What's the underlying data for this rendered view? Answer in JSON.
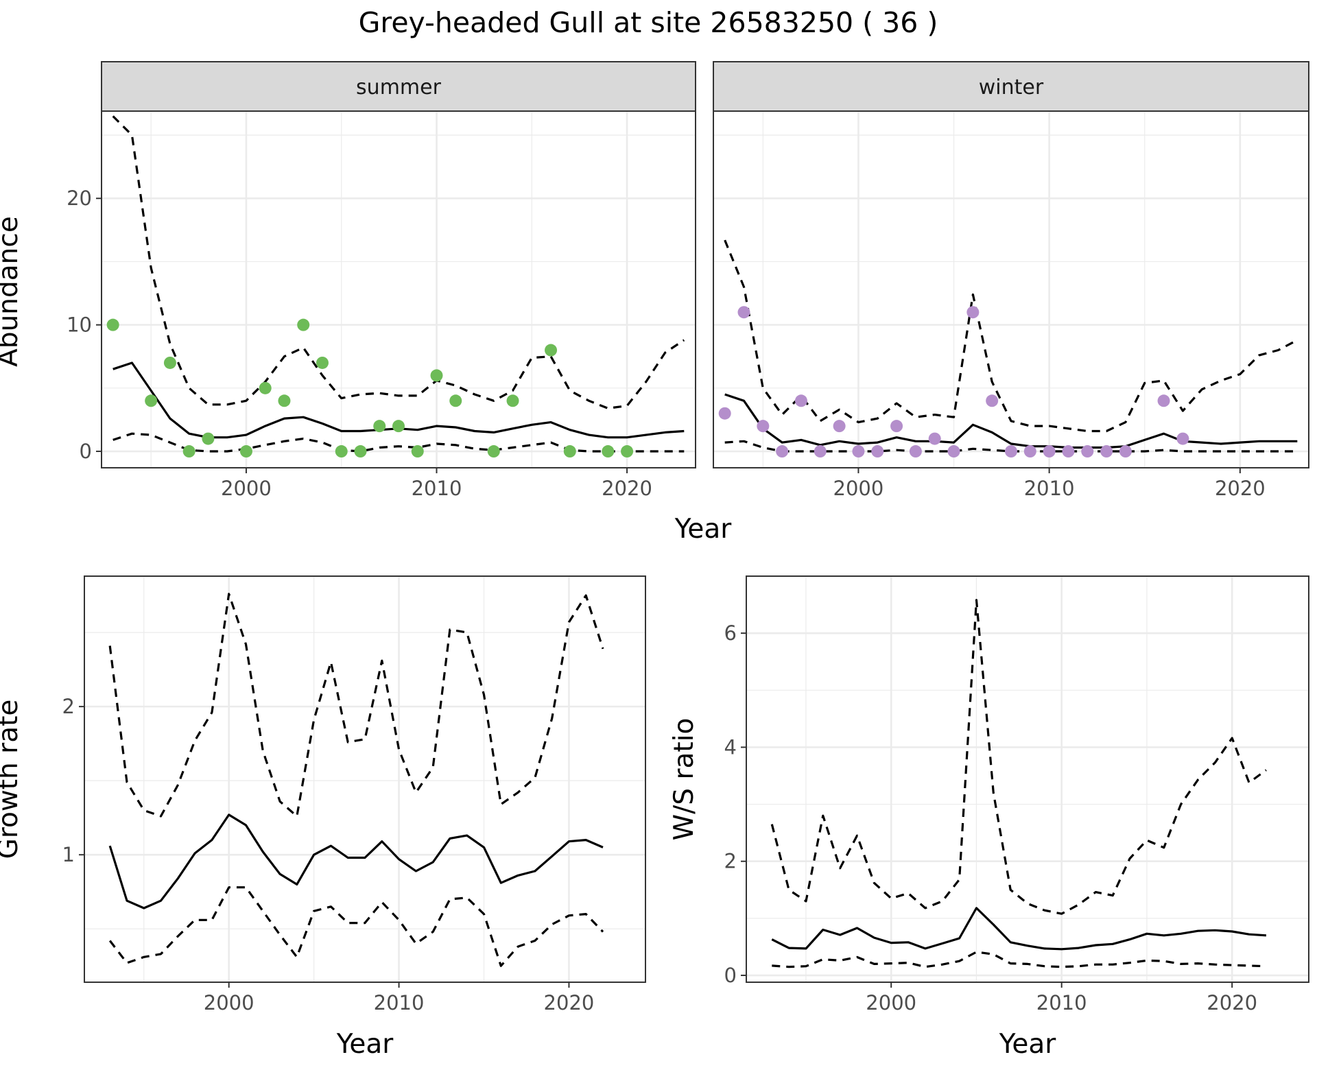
{
  "title": "Grey-headed Gull at site 26583250 ( 36 )",
  "colors": {
    "summer_points": "#6dbb57",
    "winter_points": "#b48ecb",
    "line": "#000000",
    "grid": "#ebebeb",
    "strip_fill": "#d9d9d9",
    "strip_border": "#333333",
    "panel_border": "#333333"
  },
  "chart_data": [
    {
      "type": "line",
      "facet": "summer",
      "strip_label": "summer",
      "xlabel": "Year",
      "ylabel": "Abundance",
      "xlim": [
        1992.4,
        2023.6
      ],
      "ylim": [
        -1.3,
        26.9
      ],
      "xticks": [
        2000,
        2010,
        2020
      ],
      "yticks": [
        0,
        10,
        20
      ],
      "grid": true,
      "series": [
        {
          "role": "estimate",
          "style": "solid",
          "x": [
            1993,
            1994,
            1995,
            1996,
            1997,
            1998,
            1999,
            2000,
            2001,
            2002,
            2003,
            2004,
            2005,
            2006,
            2007,
            2008,
            2009,
            2010,
            2011,
            2012,
            2013,
            2014,
            2015,
            2016,
            2017,
            2018,
            2019,
            2020,
            2021,
            2022,
            2023
          ],
          "y": [
            6.5,
            7.0,
            4.8,
            2.6,
            1.4,
            1.1,
            1.1,
            1.3,
            2.0,
            2.6,
            2.7,
            2.2,
            1.6,
            1.6,
            1.7,
            1.8,
            1.7,
            2.0,
            1.9,
            1.6,
            1.5,
            1.8,
            2.1,
            2.3,
            1.7,
            1.3,
            1.1,
            1.1,
            1.3,
            1.5,
            1.6
          ]
        },
        {
          "role": "upper",
          "style": "dashed",
          "x": [
            1993,
            1994,
            1995,
            1996,
            1997,
            1998,
            1999,
            2000,
            2001,
            2002,
            2003,
            2004,
            2005,
            2006,
            2007,
            2008,
            2009,
            2010,
            2011,
            2012,
            2013,
            2014,
            2015,
            2016,
            2017,
            2018,
            2019,
            2020,
            2021,
            2022,
            2023
          ],
          "y": [
            26.5,
            25.0,
            14.5,
            8.5,
            5.0,
            3.7,
            3.7,
            4.0,
            5.5,
            7.5,
            8.2,
            6.0,
            4.2,
            4.5,
            4.6,
            4.4,
            4.4,
            5.6,
            5.2,
            4.5,
            4.0,
            4.8,
            7.4,
            7.5,
            4.8,
            4.0,
            3.4,
            3.6,
            5.5,
            7.8,
            8.8
          ]
        },
        {
          "role": "lower",
          "style": "dashed",
          "x": [
            1993,
            1994,
            1995,
            1996,
            1997,
            1998,
            1999,
            2000,
            2001,
            2002,
            2003,
            2004,
            2005,
            2006,
            2007,
            2008,
            2009,
            2010,
            2011,
            2012,
            2013,
            2014,
            2015,
            2016,
            2017,
            2018,
            2019,
            2020,
            2021,
            2022,
            2023
          ],
          "y": [
            0.9,
            1.4,
            1.3,
            0.7,
            0.1,
            0.0,
            0.0,
            0.2,
            0.5,
            0.8,
            1.0,
            0.7,
            0.1,
            0.0,
            0.3,
            0.4,
            0.3,
            0.6,
            0.5,
            0.2,
            0.1,
            0.3,
            0.5,
            0.7,
            0.1,
            0.0,
            0.0,
            0.0,
            0.0,
            0.0,
            0.0
          ]
        }
      ],
      "points": {
        "x": [
          1993,
          1995,
          1996,
          1997,
          1998,
          2000,
          2001,
          2002,
          2003,
          2004,
          2005,
          2006,
          2007,
          2008,
          2009,
          2010,
          2011,
          2013,
          2014,
          2016,
          2017,
          2019,
          2020
        ],
        "y": [
          10,
          4,
          7,
          0,
          1,
          0,
          5,
          4,
          10,
          7,
          0,
          0,
          2,
          2,
          0,
          6,
          4,
          0,
          4,
          8,
          0,
          0,
          0
        ]
      }
    },
    {
      "type": "line",
      "facet": "winter",
      "strip_label": "winter",
      "xlabel": "Year",
      "ylabel": "",
      "xlim": [
        1992.4,
        2023.6
      ],
      "ylim": [
        -1.3,
        26.9
      ],
      "xticks": [
        2000,
        2010,
        2020
      ],
      "yticks": [
        0,
        10,
        20
      ],
      "grid": true,
      "series": [
        {
          "role": "estimate",
          "style": "solid",
          "x": [
            1993,
            1994,
            1995,
            1996,
            1997,
            1998,
            1999,
            2000,
            2001,
            2002,
            2003,
            2004,
            2005,
            2006,
            2007,
            2008,
            2009,
            2010,
            2011,
            2012,
            2013,
            2014,
            2015,
            2016,
            2017,
            2018,
            2019,
            2020,
            2021,
            2022,
            2023
          ],
          "y": [
            4.5,
            4.0,
            1.8,
            0.7,
            0.9,
            0.5,
            0.8,
            0.6,
            0.7,
            1.1,
            0.8,
            0.8,
            0.7,
            2.1,
            1.5,
            0.6,
            0.4,
            0.4,
            0.3,
            0.3,
            0.3,
            0.4,
            0.9,
            1.4,
            0.8,
            0.7,
            0.6,
            0.7,
            0.8,
            0.8,
            0.8
          ]
        },
        {
          "role": "upper",
          "style": "dashed",
          "x": [
            1993,
            1994,
            1995,
            1996,
            1997,
            1998,
            1999,
            2000,
            2001,
            2002,
            2003,
            2004,
            2005,
            2006,
            2007,
            2008,
            2009,
            2010,
            2011,
            2012,
            2013,
            2014,
            2015,
            2016,
            2017,
            2018,
            2019,
            2020,
            2021,
            2022,
            2023
          ],
          "y": [
            16.7,
            13.0,
            5.0,
            2.9,
            4.4,
            2.4,
            3.3,
            2.3,
            2.6,
            3.8,
            2.7,
            2.9,
            2.7,
            12.4,
            5.5,
            2.4,
            2.0,
            2.0,
            1.8,
            1.6,
            1.6,
            2.3,
            5.4,
            5.6,
            3.2,
            4.9,
            5.6,
            6.1,
            7.6,
            8.0,
            8.8
          ]
        },
        {
          "role": "lower",
          "style": "dashed",
          "x": [
            1993,
            1994,
            1995,
            1996,
            1997,
            1998,
            1999,
            2000,
            2001,
            2002,
            2003,
            2004,
            2005,
            2006,
            2007,
            2008,
            2009,
            2010,
            2011,
            2012,
            2013,
            2014,
            2015,
            2016,
            2017,
            2018,
            2019,
            2020,
            2021,
            2022,
            2023
          ],
          "y": [
            0.7,
            0.8,
            0.3,
            0.0,
            0.0,
            0.0,
            0.0,
            0.0,
            0.0,
            0.1,
            0.0,
            0.0,
            0.0,
            0.2,
            0.1,
            0.0,
            0.0,
            0.0,
            0.0,
            0.0,
            0.0,
            0.0,
            0.0,
            0.1,
            0.0,
            0.0,
            0.0,
            0.0,
            0.0,
            0.0,
            0.0
          ]
        }
      ],
      "points": {
        "x": [
          1993,
          1994,
          1995,
          1996,
          1997,
          1998,
          1999,
          2000,
          2001,
          2002,
          2003,
          2004,
          2005,
          2006,
          2007,
          2008,
          2009,
          2010,
          2011,
          2012,
          2013,
          2014,
          2016,
          2017
        ],
        "y": [
          3,
          11,
          2,
          0,
          4,
          0,
          2,
          0,
          0,
          2,
          0,
          1,
          0,
          11,
          4,
          0,
          0,
          0,
          0,
          0,
          0,
          0,
          4,
          1
        ]
      }
    },
    {
      "type": "line",
      "facet": "growth",
      "xlabel": "Year",
      "ylabel": "Growth rate",
      "xlim": [
        1991.5,
        2024.5
      ],
      "ylim": [
        0.14,
        2.88
      ],
      "xticks": [
        2000,
        2010,
        2020
      ],
      "yticks": [
        1,
        2
      ],
      "grid": true,
      "series": [
        {
          "role": "estimate",
          "style": "solid",
          "x": [
            1993,
            1994,
            1995,
            1996,
            1997,
            1998,
            1999,
            2000,
            2001,
            2002,
            2003,
            2004,
            2005,
            2006,
            2007,
            2008,
            2009,
            2010,
            2011,
            2012,
            2013,
            2014,
            2015,
            2016,
            2017,
            2018,
            2019,
            2020,
            2021,
            2022
          ],
          "y": [
            1.06,
            0.69,
            0.64,
            0.69,
            0.84,
            1.01,
            1.1,
            1.27,
            1.2,
            1.02,
            0.87,
            0.8,
            1.0,
            1.06,
            0.98,
            0.98,
            1.09,
            0.97,
            0.89,
            0.95,
            1.11,
            1.13,
            1.05,
            0.81,
            0.86,
            0.89,
            0.99,
            1.09,
            1.1,
            1.05
          ]
        },
        {
          "role": "upper",
          "style": "dashed",
          "x": [
            1993,
            1994,
            1995,
            1996,
            1997,
            1998,
            1999,
            2000,
            2001,
            2002,
            2003,
            2004,
            2005,
            2006,
            2007,
            2008,
            2009,
            2010,
            2011,
            2012,
            2013,
            2014,
            2015,
            2016,
            2017,
            2018,
            2019,
            2020,
            2021,
            2022
          ],
          "y": [
            2.41,
            1.49,
            1.3,
            1.26,
            1.47,
            1.77,
            1.96,
            2.76,
            2.42,
            1.7,
            1.36,
            1.26,
            1.91,
            2.3,
            1.76,
            1.78,
            2.31,
            1.71,
            1.42,
            1.59,
            2.52,
            2.5,
            2.08,
            1.34,
            1.42,
            1.52,
            1.92,
            2.57,
            2.75,
            2.39
          ]
        },
        {
          "role": "lower",
          "style": "dashed",
          "x": [
            1993,
            1994,
            1995,
            1996,
            1997,
            1998,
            1999,
            2000,
            2001,
            2002,
            2003,
            2004,
            2005,
            2006,
            2007,
            2008,
            2009,
            2010,
            2011,
            2012,
            2013,
            2014,
            2015,
            2016,
            2017,
            2018,
            2019,
            2020,
            2021,
            2022
          ],
          "y": [
            0.42,
            0.27,
            0.31,
            0.33,
            0.45,
            0.56,
            0.56,
            0.78,
            0.78,
            0.62,
            0.46,
            0.31,
            0.62,
            0.65,
            0.54,
            0.54,
            0.68,
            0.56,
            0.4,
            0.48,
            0.7,
            0.71,
            0.6,
            0.25,
            0.38,
            0.42,
            0.53,
            0.59,
            0.6,
            0.48
          ]
        }
      ]
    },
    {
      "type": "line",
      "facet": "ratio",
      "xlabel": "Year",
      "ylabel": "W/S ratio",
      "xlim": [
        1991.5,
        2024.5
      ],
      "ylim": [
        -0.12,
        7.0
      ],
      "xticks": [
        2000,
        2010,
        2020
      ],
      "yticks": [
        0,
        2,
        4,
        6
      ],
      "grid": true,
      "series": [
        {
          "role": "estimate",
          "style": "solid",
          "x": [
            1993,
            1994,
            1995,
            1996,
            1997,
            1998,
            1999,
            2000,
            2001,
            2002,
            2003,
            2004,
            2005,
            2006,
            2007,
            2008,
            2009,
            2010,
            2011,
            2012,
            2013,
            2014,
            2015,
            2016,
            2017,
            2018,
            2019,
            2020,
            2021,
            2022
          ],
          "y": [
            0.63,
            0.48,
            0.47,
            0.8,
            0.71,
            0.83,
            0.66,
            0.57,
            0.58,
            0.47,
            0.56,
            0.65,
            1.18,
            0.89,
            0.58,
            0.52,
            0.47,
            0.46,
            0.48,
            0.53,
            0.55,
            0.63,
            0.73,
            0.7,
            0.73,
            0.78,
            0.79,
            0.77,
            0.72,
            0.7
          ]
        },
        {
          "role": "upper",
          "style": "dashed",
          "x": [
            1993,
            1994,
            1995,
            1996,
            1997,
            1998,
            1999,
            2000,
            2001,
            2002,
            2003,
            2004,
            2005,
            2006,
            2007,
            2008,
            2009,
            2010,
            2011,
            2012,
            2013,
            2014,
            2015,
            2016,
            2017,
            2018,
            2019,
            2020,
            2021,
            2022
          ],
          "y": [
            2.65,
            1.5,
            1.3,
            2.8,
            1.88,
            2.45,
            1.62,
            1.35,
            1.44,
            1.18,
            1.3,
            1.68,
            6.58,
            3.2,
            1.5,
            1.26,
            1.14,
            1.08,
            1.24,
            1.46,
            1.4,
            2.05,
            2.37,
            2.24,
            3.0,
            3.43,
            3.73,
            4.16,
            3.38,
            3.6
          ]
        },
        {
          "role": "lower",
          "style": "dashed",
          "x": [
            1993,
            1994,
            1995,
            1996,
            1997,
            1998,
            1999,
            2000,
            2001,
            2002,
            2003,
            2004,
            2005,
            2006,
            2007,
            2008,
            2009,
            2010,
            2011,
            2012,
            2013,
            2014,
            2015,
            2016,
            2017,
            2018,
            2019,
            2020,
            2021,
            2022
          ],
          "y": [
            0.17,
            0.15,
            0.16,
            0.28,
            0.26,
            0.32,
            0.2,
            0.21,
            0.22,
            0.15,
            0.19,
            0.25,
            0.41,
            0.37,
            0.21,
            0.2,
            0.16,
            0.15,
            0.16,
            0.19,
            0.19,
            0.22,
            0.26,
            0.25,
            0.2,
            0.21,
            0.19,
            0.18,
            0.17,
            0.16
          ]
        }
      ]
    }
  ]
}
